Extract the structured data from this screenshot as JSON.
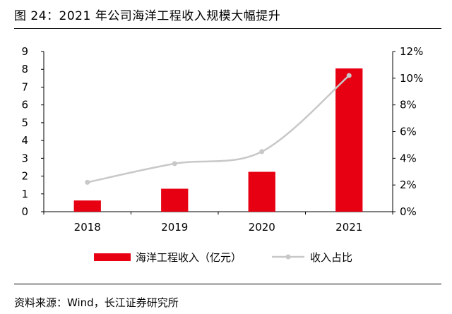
{
  "figure": {
    "title": "图 24：2021 年公司海洋工程收入规模大幅提升",
    "source": "资料来源：Wind，长江证券研究所"
  },
  "chart_data": {
    "type": "bar",
    "categories": [
      "2018",
      "2019",
      "2020",
      "2021"
    ],
    "series": [
      {
        "name": "海洋工程收入（亿元）",
        "type": "bar",
        "axis": "left",
        "values": [
          0.63,
          1.29,
          2.24,
          8.05
        ],
        "color": "#e60012"
      },
      {
        "name": "收入占比",
        "type": "line",
        "axis": "right",
        "values": [
          0.022,
          0.036,
          0.045,
          0.102
        ],
        "color": "#c8c8c8"
      }
    ],
    "y_left": {
      "min": 0,
      "max": 9,
      "ticks": [
        "0",
        "1",
        "2",
        "3",
        "4",
        "5",
        "6",
        "7",
        "8",
        "9"
      ]
    },
    "y_right": {
      "min": 0,
      "max": 0.12,
      "ticks": [
        "0%",
        "2%",
        "4%",
        "6%",
        "8%",
        "10%",
        "12%"
      ]
    },
    "grid": false,
    "legend_position": "bottom"
  }
}
